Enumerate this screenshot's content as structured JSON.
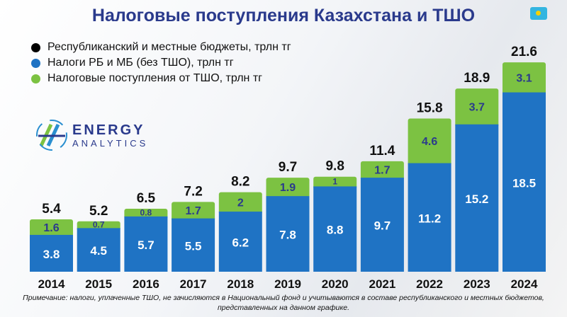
{
  "title": "Налоговые поступления Казахстана и ТШО",
  "flag_icon": "kazakhstan-flag",
  "logo": {
    "line1": "ENERGY",
    "line2": "ANALYTICS"
  },
  "watermark": "Energy Analytics",
  "note": "Примечание: налоги, уплаченные ТШО, не зачисляются в Национальный фонд и учитываются в составе республиканского и местных бюджетов, представленных на данном графике.",
  "chart_data": {
    "type": "bar",
    "stacked": true,
    "title": "Налоговые поступления Казахстана и ТШО",
    "categories": [
      "2014",
      "2015",
      "2016",
      "2017",
      "2018",
      "2019",
      "2020",
      "2021",
      "2022",
      "2023",
      "2024"
    ],
    "series": [
      {
        "name": "Налоги РБ и МБ (без ТШО), трлн тг",
        "color": "#1f73c4",
        "values": [
          3.8,
          4.5,
          5.7,
          5.5,
          6.2,
          7.8,
          8.8,
          9.7,
          11.2,
          15.2,
          18.5
        ]
      },
      {
        "name": "Налоговые поступления от ТШО, трлн тг",
        "color": "#7cc242",
        "values": [
          1.6,
          0.7,
          0.8,
          1.7,
          2.0,
          1.9,
          1.0,
          1.7,
          4.6,
          3.7,
          3.1
        ]
      }
    ],
    "totals": {
      "name": "Республиканский и местные бюджеты, трлн тг",
      "color": "#000000",
      "values": [
        5.4,
        5.2,
        6.5,
        7.2,
        8.2,
        9.7,
        9.8,
        11.4,
        15.8,
        18.9,
        21.6
      ]
    },
    "legend": "top-left",
    "grid": false
  }
}
